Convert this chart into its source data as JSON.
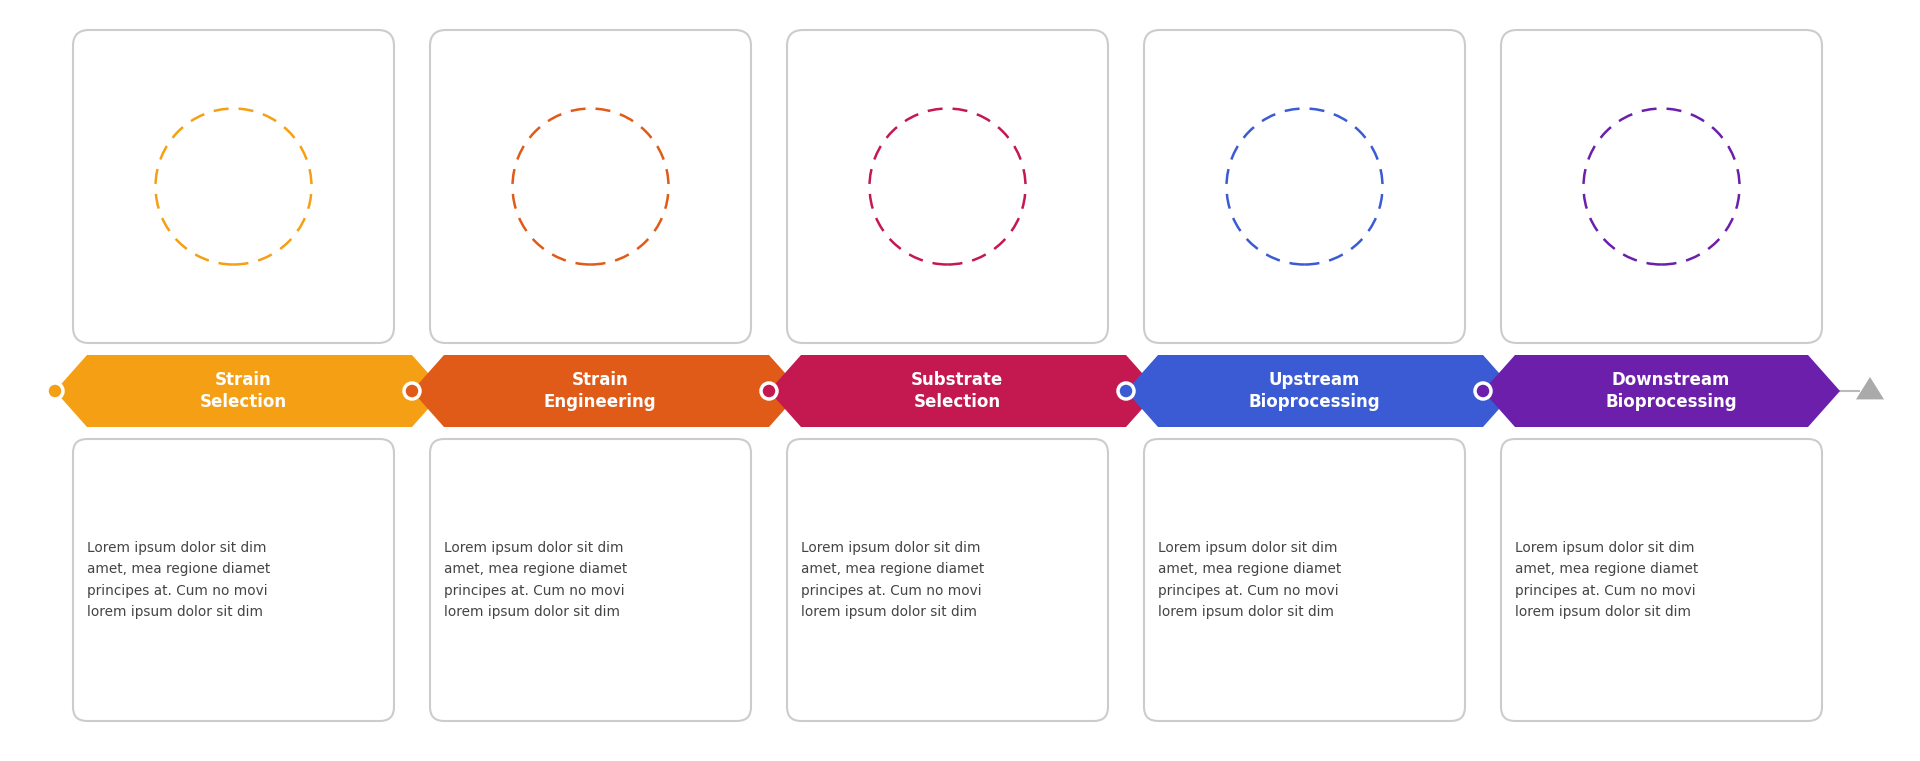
{
  "steps": [
    {
      "title": "Strain\nSelection",
      "color": "#F5A014",
      "dot_color": "#F5A014",
      "icon_color": "#F5A014"
    },
    {
      "title": "Strain\nEngineering",
      "color": "#E05A18",
      "dot_color": "#E05A18",
      "icon_color": "#E05A18"
    },
    {
      "title": "Substrate\nSelection",
      "color": "#C41850",
      "dot_color": "#C41850",
      "icon_color": "#C41850"
    },
    {
      "title": "Upstream\nBioprocessing",
      "color": "#3A5BD4",
      "dot_color": "#3A5BD4",
      "icon_color": "#3A5BD4"
    },
    {
      "title": "Downstream\nBioprocessing",
      "color": "#6B1FAA",
      "dot_color": "#6B1FAA",
      "icon_color": "#6B1FAA"
    }
  ],
  "lorem_text": "Lorem ipsum dolor sit dim\namet, mea regione diamet\nprincipes at. Cum no movi\nlorem ipsum dolor sit dim",
  "background_color": "#ffffff",
  "text_color": "#444444",
  "line_color": "#bbbbbb",
  "box_border_color": "#cccccc",
  "n_steps": 5,
  "fig_width": 19.2,
  "fig_height": 7.61,
  "dpi": 100
}
